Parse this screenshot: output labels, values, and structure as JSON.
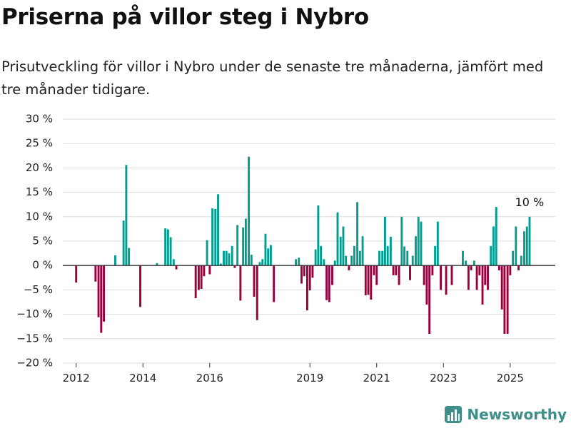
{
  "title": "Priserna på villor steg i Nybro",
  "subtitle": "Prisutveckling för villor i Nybro under de senaste tre månaderna, jämfört med tre månader tidigare.",
  "brand": "Newsworthy",
  "colors": {
    "positive": "#009e8f",
    "negative": "#99003d",
    "grid": "#dddddd",
    "zero": "#333333",
    "brand": "#3e8e8a"
  },
  "chart_data": {
    "type": "bar",
    "title": "",
    "xlabel": "",
    "ylabel": "",
    "unit": "%",
    "ylim": [
      -20,
      30
    ],
    "yticks": [
      30,
      25,
      20,
      15,
      10,
      5,
      0,
      -5,
      -10,
      -15,
      -20
    ],
    "ytick_labels": [
      "30 %",
      "25 %",
      "20 %",
      "15 %",
      "10 %",
      "5 %",
      "0 %",
      "−5 %",
      "−10 %",
      "−15 %",
      "−20 %"
    ],
    "xlim": [
      2011.6,
      2026.35
    ],
    "xticks": [
      2012,
      2014,
      2016,
      2019,
      2021,
      2023,
      2025
    ],
    "xtick_labels": [
      "2012",
      "2014",
      "2016",
      "2019",
      "2021",
      "2023",
      "2025"
    ],
    "grid": true,
    "annotation": {
      "text": "10 %",
      "x": 2025.6
    },
    "x": [
      2012.0,
      2012.58,
      2012.67,
      2012.75,
      2012.83,
      2013.17,
      2013.42,
      2013.5,
      2013.58,
      2013.92,
      2014.42,
      2014.67,
      2014.75,
      2014.83,
      2014.92,
      2015.0,
      2015.58,
      2015.67,
      2015.75,
      2015.83,
      2015.92,
      2016.0,
      2016.08,
      2016.17,
      2016.25,
      2016.33,
      2016.42,
      2016.5,
      2016.58,
      2016.67,
      2016.75,
      2016.83,
      2016.92,
      2017.0,
      2017.08,
      2017.17,
      2017.25,
      2017.33,
      2017.42,
      2017.5,
      2017.58,
      2017.67,
      2017.75,
      2017.83,
      2017.92,
      2018.0,
      2018.08,
      2018.58,
      2018.67,
      2018.75,
      2018.83,
      2018.92,
      2019.0,
      2019.08,
      2019.17,
      2019.25,
      2019.33,
      2019.42,
      2019.5,
      2019.58,
      2019.67,
      2019.75,
      2019.83,
      2019.92,
      2020.0,
      2020.08,
      2020.17,
      2020.25,
      2020.33,
      2020.42,
      2020.5,
      2020.58,
      2020.67,
      2020.75,
      2020.83,
      2020.92,
      2021.0,
      2021.08,
      2021.17,
      2021.25,
      2021.33,
      2021.42,
      2021.5,
      2021.58,
      2021.67,
      2021.75,
      2021.83,
      2021.92,
      2022.0,
      2022.08,
      2022.17,
      2022.25,
      2022.33,
      2022.42,
      2022.5,
      2022.58,
      2022.67,
      2022.75,
      2022.83,
      2022.92,
      2023.08,
      2023.25,
      2023.58,
      2023.67,
      2023.75,
      2023.83,
      2023.92,
      2024.0,
      2024.08,
      2024.17,
      2024.25,
      2024.33,
      2024.42,
      2024.5,
      2024.58,
      2024.67,
      2024.75,
      2024.83,
      2024.92,
      2025.0,
      2025.08,
      2025.17,
      2025.25,
      2025.33,
      2025.42,
      2025.5,
      2025.58
    ],
    "values": [
      -3.5,
      -3.3,
      -10.6,
      -13.8,
      -11.5,
      2.1,
      9.2,
      20.6,
      3.6,
      -8.5,
      0.5,
      7.6,
      7.4,
      5.8,
      1.3,
      -0.8,
      -6.7,
      -5.0,
      -4.8,
      -2.2,
      5.2,
      -1.8,
      11.7,
      11.6,
      14.6,
      0.4,
      3.0,
      3.0,
      2.5,
      4.0,
      -0.5,
      8.3,
      -7.2,
      7.8,
      9.6,
      22.3,
      2.2,
      -6.4,
      -11.2,
      0.7,
      1.3,
      6.5,
      3.5,
      4.2,
      -7.5,
      0.0,
      0.0,
      1.3,
      1.6,
      -3.7,
      -2.2,
      -9.2,
      -5.1,
      -2.5,
      3.3,
      12.3,
      4.0,
      1.3,
      -7.1,
      -7.5,
      -4.0,
      1.0,
      10.9,
      5.9,
      8.0,
      2.0,
      -1.0,
      2.0,
      4.0,
      13.0,
      3.0,
      6.0,
      -6.1,
      -6.0,
      -7.0,
      -2.0,
      -4.0,
      3.0,
      3.0,
      10.0,
      4.0,
      5.9,
      -2.0,
      -2.0,
      -4.0,
      10.0,
      3.9,
      3.0,
      -3.0,
      2.0,
      6.0,
      10.0,
      9.0,
      -4.0,
      -8.0,
      -14.0,
      -2.0,
      4.0,
      9.0,
      -5.0,
      -6.0,
      -4.0,
      3.0,
      1.0,
      -5.0,
      -1.0,
      1.0,
      -5.0,
      -2.0,
      -8.0,
      -4.0,
      -5.0,
      4.0,
      8.0,
      12.0,
      -1.0,
      -9.0,
      -14.0,
      -14.0,
      -2.0,
      3.0,
      8.0,
      -1.0,
      2.0,
      7.0,
      8.0,
      10.0
    ]
  }
}
